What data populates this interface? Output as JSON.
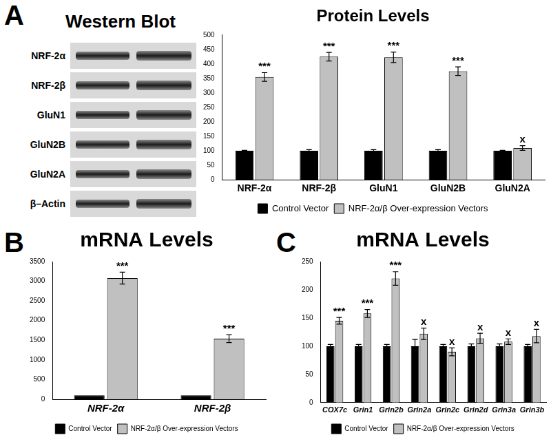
{
  "western_blot": {
    "panel": "A",
    "title": "Western Blot",
    "rows": [
      "NRF-2α",
      "NRF-2β",
      "GluN1",
      "GluN2B",
      "GluN2A",
      "β–Actin"
    ]
  },
  "chart_data": [
    {
      "type": "bar",
      "title": "Protein Levels",
      "categories": [
        "NRF-2α",
        "NRF-2β",
        "GluN1",
        "GluN2B",
        "GluN2A"
      ],
      "series": [
        {
          "name": "Control Vector",
          "color": "#000000",
          "values": [
            100,
            100,
            100,
            100,
            100
          ],
          "error": [
            2,
            4,
            4,
            4,
            2
          ]
        },
        {
          "name": "NRF-2α/β Over-expression Vectors",
          "color": "#c0c0c0",
          "values": [
            355,
            425,
            423,
            375,
            110
          ],
          "error": [
            15,
            15,
            18,
            15,
            8
          ],
          "annotations": [
            "***",
            "***",
            "***",
            "***",
            "x"
          ]
        }
      ],
      "ylim": [
        0,
        500
      ],
      "yticks": [
        0,
        50,
        100,
        150,
        200,
        250,
        300,
        350,
        400,
        450,
        500
      ],
      "grid": false,
      "legend": "bottom"
    },
    {
      "type": "bar",
      "panel": "B",
      "title": "mRNA Levels",
      "categories": [
        "NRF-2α",
        "NRF-2β"
      ],
      "series": [
        {
          "name": "Control Vector",
          "color": "#000000",
          "values": [
            100,
            100
          ]
        },
        {
          "name": "NRF-2α/β Over-expression Vectors",
          "color": "#c0c0c0",
          "values": [
            3080,
            1540
          ],
          "error": [
            150,
            100
          ],
          "annotations": [
            "***",
            "***"
          ]
        }
      ],
      "ylim": [
        0,
        3500
      ],
      "yticks": [
        0,
        500,
        1000,
        1500,
        2000,
        2500,
        3000,
        3500
      ],
      "grid": false,
      "legend": "bottom"
    },
    {
      "type": "bar",
      "panel": "C",
      "title": "mRNA Levels",
      "categories": [
        "COX7c",
        "Grin1",
        "Grin2b",
        "Grin2a",
        "Grin2c",
        "Grin2d",
        "Grin3a",
        "Grin3b"
      ],
      "series": [
        {
          "name": "Control Vector",
          "color": "#000000",
          "values": [
            100,
            100,
            100,
            100,
            100,
            100,
            100,
            100
          ],
          "error": [
            3,
            3,
            3,
            12,
            3,
            4,
            4,
            3
          ]
        },
        {
          "name": "NRF-2α/β Over-expression Vectors",
          "color": "#c0c0c0",
          "values": [
            145,
            158,
            220,
            122,
            90,
            114,
            108,
            118
          ],
          "error": [
            6,
            7,
            12,
            10,
            7,
            9,
            5,
            12
          ],
          "annotations": [
            "***",
            "***",
            "***",
            "x",
            "x",
            "x",
            "x",
            "x"
          ]
        }
      ],
      "ylim": [
        0,
        250
      ],
      "yticks": [
        0,
        50,
        100,
        150,
        200,
        250
      ],
      "grid": false,
      "legend": "bottom"
    }
  ]
}
